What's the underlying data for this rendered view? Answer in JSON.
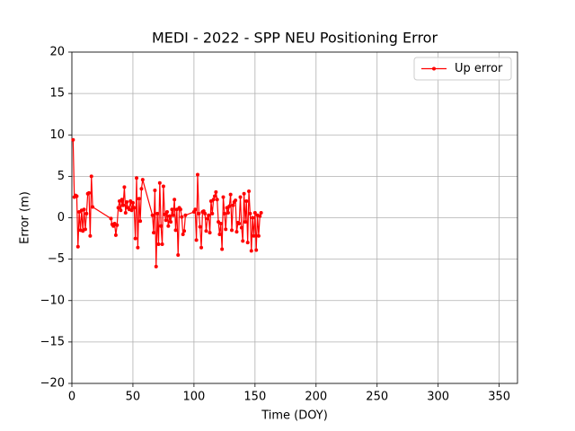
{
  "chart_data": {
    "type": "line",
    "title": "MEDI - 2022 - SPP NEU Positioning Error",
    "x_label": "Time (DOY)",
    "y_label": "Error (m)",
    "xlim": [
      0,
      365
    ],
    "xticks": [
      0,
      50,
      100,
      150,
      200,
      250,
      300,
      350
    ],
    "ylim": [
      -20,
      20
    ],
    "yticks": [
      {
        "value": -20,
        "label": "−20"
      },
      {
        "value": -15,
        "label": "−15"
      },
      {
        "value": -10,
        "label": "−10"
      },
      {
        "value": -5,
        "label": "−5"
      },
      0,
      5,
      10,
      15,
      20
    ],
    "grid": true,
    "legend": "upper right",
    "x": [
      1,
      2,
      3,
      4,
      5,
      6,
      7,
      8,
      9,
      10,
      11,
      12,
      13,
      14,
      15,
      16,
      17,
      32,
      33,
      34,
      35,
      36,
      37,
      38,
      39,
      40,
      41,
      42,
      43,
      44,
      45,
      46,
      47,
      48,
      49,
      50,
      51,
      52,
      53,
      54,
      55,
      56,
      57,
      58,
      66,
      67,
      68,
      69,
      70,
      71,
      72,
      73,
      74,
      75,
      76,
      77,
      78,
      79,
      80,
      81,
      82,
      83,
      84,
      85,
      86,
      87,
      88,
      89,
      90,
      91,
      92,
      93,
      100,
      101,
      102,
      103,
      104,
      105,
      106,
      107,
      108,
      109,
      110,
      111,
      112,
      113,
      114,
      115,
      116,
      117,
      118,
      119,
      120,
      121,
      122,
      123,
      124,
      125,
      126,
      127,
      128,
      129,
      130,
      131,
      132,
      133,
      134,
      135,
      136,
      137,
      138,
      139,
      140,
      141,
      142,
      143,
      144,
      145,
      146,
      147,
      148,
      149,
      150,
      151,
      152,
      153,
      154,
      155
    ],
    "series": [
      {
        "name": "Up error",
        "color": "#ff0000",
        "values": [
          9.4,
          2.5,
          2.7,
          2.6,
          -3.5,
          0.7,
          -1.5,
          0.9,
          -1.6,
          1.0,
          -1.4,
          0.5,
          2.9,
          3.0,
          -2.2,
          5.0,
          1.3,
          -0.1,
          -0.8,
          -1.0,
          -0.7,
          -2.1,
          -0.9,
          1.2,
          2.0,
          0.9,
          2.2,
          1.5,
          3.7,
          0.6,
          1.9,
          1.2,
          1.0,
          2.0,
          0.9,
          1.8,
          1.2,
          -2.5,
          4.8,
          -3.6,
          2.3,
          -0.4,
          3.5,
          4.6,
          0.3,
          -1.8,
          3.3,
          -5.9,
          0.5,
          -3.2,
          4.2,
          -1.0,
          -3.2,
          3.8,
          0.4,
          -0.3,
          0.7,
          -1.0,
          0.2,
          -0.5,
          1.0,
          0.3,
          2.2,
          -1.5,
          1.0,
          -4.5,
          1.2,
          1.0,
          0.1,
          -2.0,
          -1.6,
          0.3,
          0.7,
          1.0,
          -2.7,
          5.2,
          0.5,
          -1.1,
          -3.6,
          0.7,
          0.8,
          0.5,
          -1.6,
          -0.1,
          0.3,
          -1.8,
          2.0,
          0.5,
          2.2,
          2.6,
          3.1,
          2.2,
          -0.5,
          -2.0,
          -0.7,
          -3.8,
          2.5,
          0.5,
          -1.4,
          1.2,
          0.6,
          1.4,
          2.8,
          -1.5,
          1.5,
          1.9,
          2.1,
          -1.7,
          -0.6,
          -0.7,
          2.5,
          -1.2,
          -2.8,
          2.9,
          -0.5,
          2.0,
          -3.0,
          3.2,
          0.5,
          -4.0,
          0.0,
          -2.2,
          0.6,
          -3.9,
          0.3,
          -2.2,
          0.2,
          0.6
        ]
      }
    ]
  }
}
